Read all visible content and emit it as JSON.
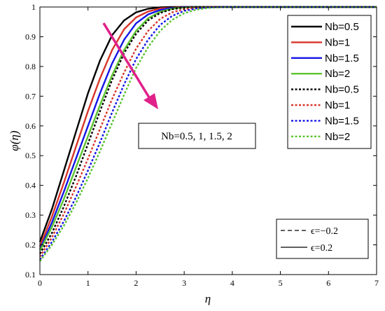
{
  "chart_data": {
    "type": "line",
    "xlabel": "η",
    "ylabel": "φ(η)",
    "xlim": [
      0,
      7
    ],
    "ylim": [
      0.1,
      1
    ],
    "xticks": [
      "0",
      "1",
      "2",
      "3",
      "4",
      "5",
      "6",
      "7"
    ],
    "yticks": [
      "0.1",
      "0.2",
      "0.3",
      "0.4",
      "0.5",
      "0.6",
      "0.7",
      "0.8",
      "0.9",
      "1"
    ],
    "grid": false,
    "legend_position": "top-right",
    "x": [
      0,
      0.25,
      0.5,
      0.75,
      1,
      1.25,
      1.5,
      1.75,
      2,
      2.25,
      2.5,
      2.75,
      3,
      3.25,
      3.5,
      3.75,
      4,
      4.25,
      4.5,
      5,
      5.5,
      6,
      7
    ],
    "series": [
      {
        "name": "Nb=0.5",
        "color": "#000000",
        "dash": "solid",
        "values": [
          0.21,
          0.32,
          0.45,
          0.58,
          0.71,
          0.82,
          0.905,
          0.955,
          0.982,
          0.994,
          0.999,
          1,
          1,
          1,
          1,
          1,
          1,
          1,
          1,
          1,
          1,
          1,
          1
        ]
      },
      {
        "name": "Nb=1",
        "color": "#d8352a",
        "dash": "solid",
        "values": [
          0.195,
          0.295,
          0.41,
          0.53,
          0.65,
          0.76,
          0.855,
          0.925,
          0.965,
          0.985,
          0.995,
          0.999,
          1,
          1,
          1,
          1,
          1,
          1,
          1,
          1,
          1,
          1,
          1
        ]
      },
      {
        "name": "Nb=1.5",
        "color": "#1414e6",
        "dash": "solid",
        "values": [
          0.185,
          0.275,
          0.38,
          0.49,
          0.6,
          0.71,
          0.81,
          0.89,
          0.945,
          0.975,
          0.99,
          0.997,
          1,
          1,
          1,
          1,
          1,
          1,
          1,
          1,
          1,
          1,
          1
        ]
      },
      {
        "name": "Nb=2",
        "color": "#5cc430",
        "dash": "solid",
        "values": [
          0.18,
          0.26,
          0.355,
          0.46,
          0.565,
          0.67,
          0.77,
          0.855,
          0.92,
          0.962,
          0.984,
          0.994,
          0.999,
          1,
          1,
          1,
          1,
          1,
          1,
          1,
          1,
          1,
          1
        ]
      },
      {
        "name": "Nb=0.5",
        "color": "#000000",
        "dash": "dotted",
        "values": [
          0.17,
          0.24,
          0.33,
          0.43,
          0.54,
          0.65,
          0.755,
          0.845,
          0.91,
          0.955,
          0.98,
          0.993,
          0.998,
          1,
          1,
          1,
          1,
          1,
          1,
          1,
          1,
          1,
          1
        ]
      },
      {
        "name": "Nb=1",
        "color": "#d8352a",
        "dash": "dotted",
        "values": [
          0.16,
          0.225,
          0.305,
          0.395,
          0.49,
          0.59,
          0.69,
          0.78,
          0.86,
          0.92,
          0.96,
          0.982,
          0.993,
          0.998,
          1,
          1,
          1,
          1,
          1,
          1,
          1,
          1,
          1
        ]
      },
      {
        "name": "Nb=1.5",
        "color": "#1414e6",
        "dash": "dotted",
        "values": [
          0.15,
          0.21,
          0.28,
          0.36,
          0.45,
          0.545,
          0.645,
          0.74,
          0.825,
          0.89,
          0.94,
          0.97,
          0.987,
          0.995,
          0.999,
          1,
          1,
          1,
          1,
          1,
          1,
          1,
          1
        ]
      },
      {
        "name": "Nb=2",
        "color": "#5cc430",
        "dash": "dotted",
        "values": [
          0.145,
          0.2,
          0.265,
          0.34,
          0.425,
          0.515,
          0.61,
          0.705,
          0.795,
          0.865,
          0.92,
          0.957,
          0.979,
          0.991,
          0.997,
          0.999,
          1,
          1,
          1,
          1,
          1,
          1,
          1
        ]
      }
    ],
    "annotation": {
      "text": "Nb=0.5, 1, 1.5, 2",
      "arrow_color": "#e0218a"
    },
    "legend2": [
      {
        "label": "ϵ=−0.2",
        "dash": "dashed"
      },
      {
        "label": "ϵ=0.2",
        "dash": "solid"
      }
    ]
  }
}
